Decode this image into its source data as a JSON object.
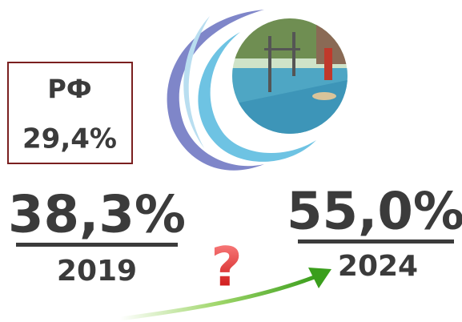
{
  "box": {
    "label": "РФ",
    "value": "29,4%"
  },
  "left": {
    "value": "38,3%",
    "year": "2019"
  },
  "right": {
    "value": "55,0%",
    "year": "2024"
  },
  "question": "?"
}
